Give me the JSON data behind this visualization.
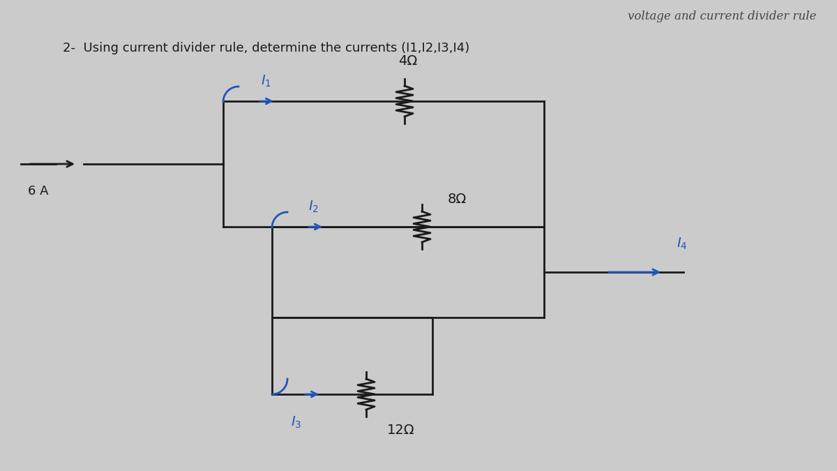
{
  "title": "voltage and current divider rule",
  "problem_text": "2-  Using current divider rule, determine the currents (I1,I2,I3,I4)",
  "bg_color": "#cbcbcb",
  "paper_color": "#e2e2e2",
  "line_color": "#1a1a1a",
  "arrow_color": "#2255bb",
  "source_label": "6 A",
  "I4_label": "I4",
  "r4_label": "4Ω",
  "r8_label": "8Ω",
  "r12_label": "12Ω",
  "I1_label": "I1",
  "I2_label": "I2",
  "I3_label": "I3",
  "font_size_title": 12,
  "font_size_problem": 13,
  "font_size_labels": 13
}
